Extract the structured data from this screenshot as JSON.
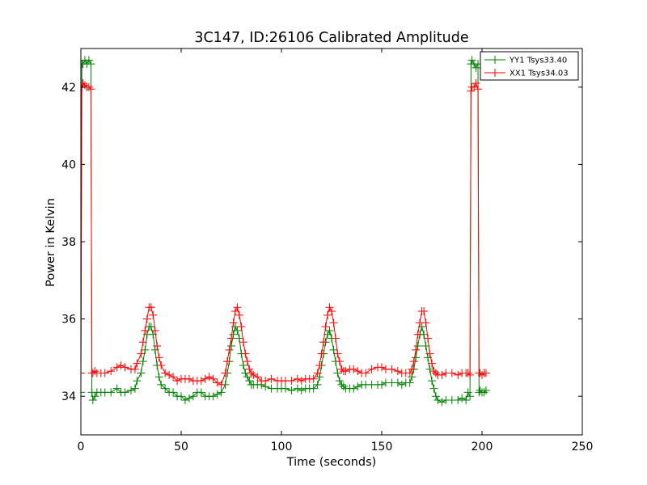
{
  "chart_data": {
    "type": "line",
    "title": "3C147, ID:26106 Calibrated Amplitude",
    "xlabel": "Time (seconds)",
    "ylabel": "Power in Kelvin",
    "xlim": [
      0,
      250
    ],
    "ylim": [
      33,
      43
    ],
    "xticks": [
      0,
      50,
      100,
      150,
      200,
      250
    ],
    "yticks": [
      34,
      36,
      38,
      40,
      42
    ],
    "grid": false,
    "legend_position": "top-right",
    "marker": "+",
    "series": [
      {
        "name": "YY1 Tsys33.40",
        "color": "#008000",
        "x": [
          0,
          0.5,
          1,
          2,
          3,
          4,
          5,
          5.5,
          6,
          7,
          8,
          10,
          12,
          15,
          18,
          20,
          22,
          25,
          27,
          28,
          30,
          31,
          32,
          33,
          34,
          35,
          36,
          37,
          38,
          39,
          40,
          42,
          44,
          46,
          48,
          50,
          52,
          54,
          56,
          58,
          60,
          62,
          64,
          66,
          68,
          70,
          72,
          73,
          74,
          75,
          76,
          77,
          78,
          79,
          80,
          81,
          82,
          83,
          84,
          85,
          86,
          88,
          90,
          92,
          95,
          98,
          100,
          102,
          105,
          108,
          110,
          112,
          114,
          116,
          118,
          119,
          120,
          121,
          122,
          123,
          124,
          125,
          126,
          127,
          128,
          129,
          130,
          131,
          132,
          134,
          136,
          138,
          140,
          142,
          145,
          148,
          150,
          152,
          155,
          158,
          160,
          162,
          164,
          165,
          166,
          167,
          168,
          169,
          170,
          171,
          172,
          173,
          174,
          175,
          176,
          177,
          178,
          180,
          182,
          185,
          188,
          190,
          192,
          193,
          194,
          194.5,
          195,
          196,
          197,
          198,
          198.5,
          199,
          200,
          201,
          202
        ],
        "y": [
          34.1,
          42.6,
          42.6,
          42.7,
          42.6,
          42.7,
          42.6,
          34.1,
          33.9,
          34.0,
          34.1,
          34.1,
          34.1,
          34.1,
          34.2,
          34.1,
          34.1,
          34.15,
          34.2,
          34.4,
          34.6,
          34.9,
          35.2,
          35.6,
          35.8,
          35.8,
          35.6,
          35.2,
          34.8,
          34.5,
          34.3,
          34.2,
          34.1,
          34.1,
          34.0,
          34.0,
          33.9,
          33.95,
          34.0,
          34.1,
          34.1,
          34.0,
          34.0,
          34.0,
          34.05,
          34.1,
          34.3,
          34.6,
          34.9,
          35.3,
          35.6,
          35.8,
          35.7,
          35.5,
          35.1,
          34.8,
          34.6,
          34.5,
          34.4,
          34.3,
          34.3,
          34.3,
          34.3,
          34.25,
          34.2,
          34.2,
          34.2,
          34.2,
          34.15,
          34.2,
          34.15,
          34.2,
          34.2,
          34.2,
          34.3,
          34.5,
          34.8,
          35.1,
          35.4,
          35.6,
          35.7,
          35.5,
          35.2,
          34.9,
          34.6,
          34.4,
          34.3,
          34.25,
          34.2,
          34.2,
          34.2,
          34.25,
          34.3,
          34.3,
          34.3,
          34.3,
          34.3,
          34.35,
          34.35,
          34.35,
          34.3,
          34.35,
          34.35,
          34.5,
          34.7,
          35.0,
          35.3,
          35.6,
          35.8,
          35.6,
          35.3,
          35.0,
          34.7,
          34.4,
          34.2,
          34.0,
          33.9,
          33.85,
          33.9,
          33.9,
          33.9,
          33.95,
          33.9,
          34.1,
          34.0,
          42.6,
          42.7,
          42.6,
          42.5,
          42.6,
          34.1,
          34.15,
          34.1,
          34.1,
          34.15
        ],
        "x_alt": null
      },
      {
        "name": "XX1 Tsys34.03",
        "color": "#ff0000",
        "x": [
          0,
          0.5,
          1,
          2,
          3,
          4,
          5,
          5.5,
          6,
          7,
          8,
          10,
          12,
          15,
          18,
          20,
          22,
          25,
          27,
          28,
          30,
          31,
          32,
          33,
          34,
          35,
          36,
          37,
          38,
          39,
          40,
          42,
          44,
          46,
          48,
          50,
          52,
          54,
          56,
          58,
          60,
          62,
          64,
          66,
          68,
          70,
          72,
          73,
          74,
          75,
          76,
          77,
          78,
          79,
          80,
          81,
          82,
          83,
          84,
          85,
          86,
          88,
          90,
          92,
          95,
          98,
          100,
          102,
          105,
          108,
          110,
          112,
          114,
          116,
          118,
          119,
          120,
          121,
          122,
          123,
          124,
          125,
          126,
          127,
          128,
          129,
          130,
          131,
          132,
          134,
          136,
          138,
          140,
          142,
          145,
          148,
          150,
          152,
          155,
          158,
          160,
          162,
          164,
          165,
          166,
          167,
          168,
          169,
          170,
          171,
          172,
          173,
          174,
          175,
          176,
          177,
          178,
          180,
          182,
          185,
          188,
          190,
          192,
          193,
          194,
          194.5,
          195,
          196,
          197,
          198,
          198.5,
          199,
          200,
          201,
          202
        ],
        "y": [
          34.6,
          42.0,
          42.1,
          42.05,
          42.0,
          42.0,
          41.95,
          34.6,
          34.6,
          34.65,
          34.6,
          34.6,
          34.6,
          34.65,
          34.75,
          34.8,
          34.75,
          34.7,
          34.7,
          34.85,
          35.1,
          35.4,
          35.7,
          36.0,
          36.3,
          36.3,
          36.1,
          35.7,
          35.3,
          35.0,
          34.8,
          34.6,
          34.55,
          34.5,
          34.4,
          34.45,
          34.45,
          34.45,
          34.4,
          34.4,
          34.4,
          34.45,
          34.5,
          34.45,
          34.35,
          34.3,
          34.6,
          34.9,
          35.2,
          35.5,
          35.9,
          36.2,
          36.3,
          36.1,
          35.8,
          35.4,
          35.1,
          34.9,
          34.7,
          34.6,
          34.55,
          34.5,
          34.4,
          34.4,
          34.45,
          34.4,
          34.4,
          34.4,
          34.4,
          34.45,
          34.4,
          34.45,
          34.45,
          34.45,
          34.6,
          34.8,
          35.1,
          35.4,
          35.8,
          36.1,
          36.3,
          36.2,
          35.9,
          35.5,
          35.1,
          34.9,
          34.7,
          34.65,
          34.65,
          34.7,
          34.7,
          34.65,
          34.6,
          34.6,
          34.7,
          34.75,
          34.75,
          34.7,
          34.7,
          34.65,
          34.6,
          34.6,
          34.6,
          34.7,
          34.9,
          35.2,
          35.6,
          35.9,
          36.2,
          36.2,
          35.9,
          35.5,
          35.1,
          34.85,
          34.65,
          34.6,
          34.55,
          34.55,
          34.6,
          34.6,
          34.55,
          34.6,
          34.6,
          34.6,
          34.55,
          41.9,
          42.0,
          42.0,
          42.1,
          41.95,
          34.6,
          34.6,
          34.55,
          34.6,
          34.6
        ]
      }
    ]
  }
}
